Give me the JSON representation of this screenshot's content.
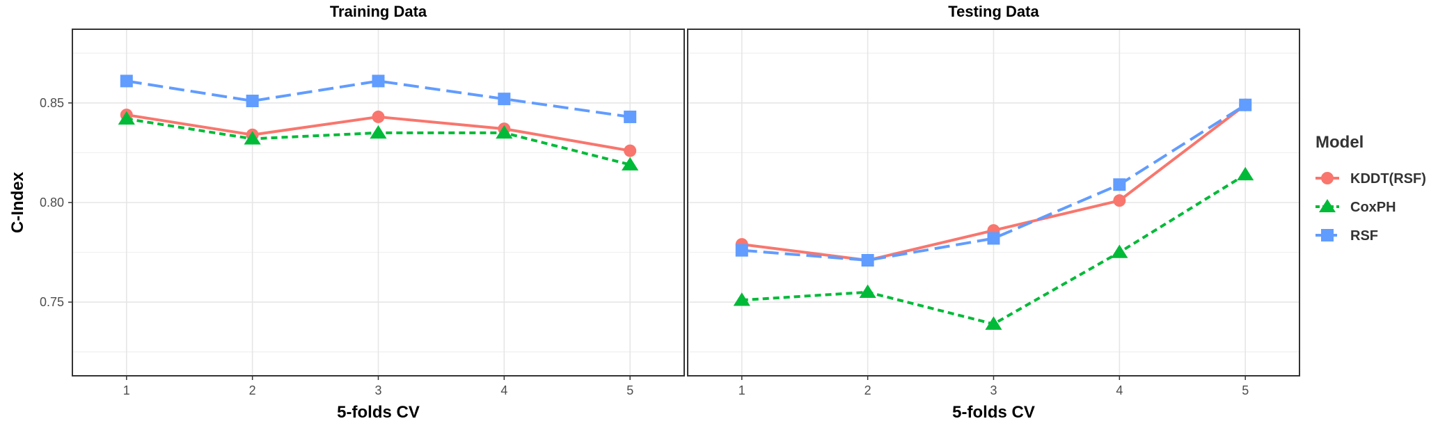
{
  "chart_data": {
    "type": "line",
    "ylabel": "C-Index",
    "ylim": [
      0.713,
      0.887
    ],
    "y_ticks": [
      0.75,
      0.8,
      0.85
    ],
    "y_tick_labels": [
      "0.75",
      "0.80",
      "0.85"
    ],
    "x": [
      1,
      2,
      3,
      4,
      5
    ],
    "x_tick_labels": [
      "1",
      "2",
      "3",
      "4",
      "5"
    ],
    "grid": true,
    "legend": {
      "title": "Model",
      "placement": "right",
      "entries": [
        "KDDT(RSF)",
        "CoxPH",
        "RSF"
      ]
    },
    "colors": {
      "KDDT(RSF)": "#F8766D",
      "CoxPH": "#00BA38",
      "RSF": "#619CFF"
    },
    "panels": [
      {
        "title": "Training Data",
        "xlabel": "5-folds CV",
        "series": [
          {
            "name": "KDDT(RSF)",
            "values": [
              0.844,
              0.834,
              0.843,
              0.837,
              0.826
            ]
          },
          {
            "name": "CoxPH",
            "values": [
              0.842,
              0.832,
              0.835,
              0.835,
              0.819
            ]
          },
          {
            "name": "RSF",
            "values": [
              0.861,
              0.851,
              0.861,
              0.852,
              0.843
            ]
          }
        ]
      },
      {
        "title": "Testing Data",
        "xlabel": "5-folds CV",
        "series": [
          {
            "name": "KDDT(RSF)",
            "values": [
              0.779,
              0.771,
              0.786,
              0.801,
              0.849
            ]
          },
          {
            "name": "CoxPH",
            "values": [
              0.751,
              0.755,
              0.739,
              0.775,
              0.814
            ]
          },
          {
            "name": "RSF",
            "values": [
              0.776,
              0.771,
              0.782,
              0.809,
              0.849
            ]
          }
        ]
      }
    ]
  }
}
